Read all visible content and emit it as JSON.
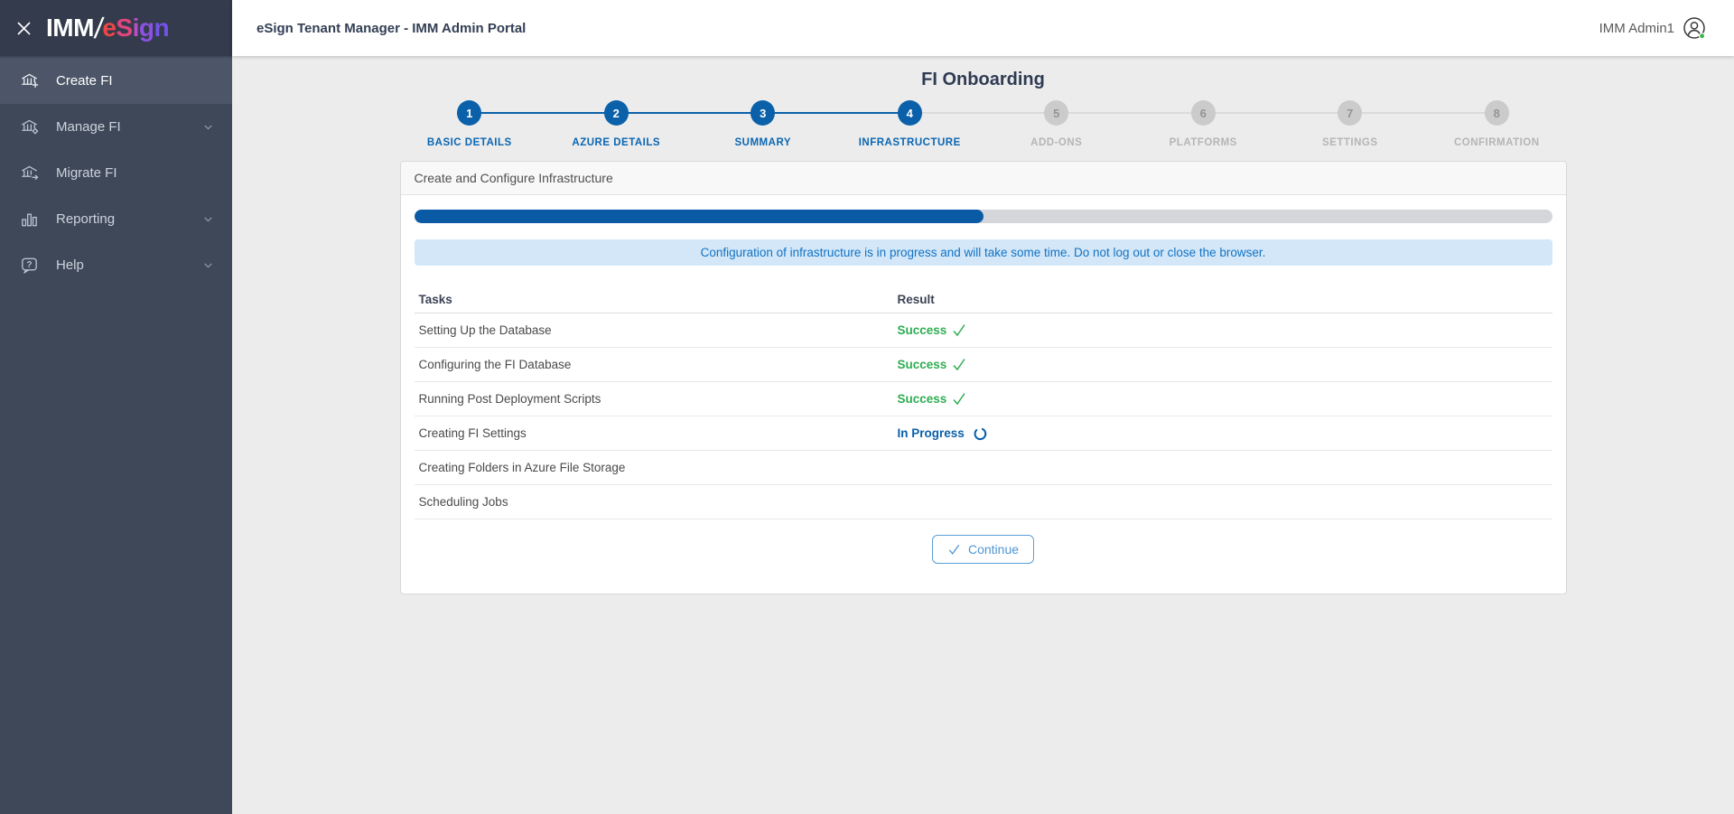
{
  "brand": {
    "logo_text_primary": "IMM",
    "logo_separator": "/",
    "logo_text_secondary": "eSign",
    "esign_letters": [
      "e",
      "S",
      "i",
      "g",
      "n"
    ]
  },
  "topbar": {
    "title": "eSign Tenant Manager - IMM Admin Portal",
    "user": {
      "name": "IMM Admin1",
      "status": "online"
    }
  },
  "sidebar": {
    "items": [
      {
        "label": "Create FI",
        "icon": "bank-plus-icon",
        "active": true,
        "expandable": false
      },
      {
        "label": "Manage FI",
        "icon": "bank-gear-icon",
        "active": false,
        "expandable": true
      },
      {
        "label": "Migrate FI",
        "icon": "bank-arrow-icon",
        "active": false,
        "expandable": false
      },
      {
        "label": "Reporting",
        "icon": "bar-chart-icon",
        "active": false,
        "expandable": true
      },
      {
        "label": "Help",
        "icon": "help-bubble-icon",
        "active": false,
        "expandable": true
      }
    ]
  },
  "page": {
    "title": "FI Onboarding"
  },
  "stepper": {
    "steps": [
      {
        "number": "1",
        "label": "BASIC DETAILS",
        "state": "completed"
      },
      {
        "number": "2",
        "label": "AZURE DETAILS",
        "state": "completed"
      },
      {
        "number": "3",
        "label": "SUMMARY",
        "state": "completed"
      },
      {
        "number": "4",
        "label": "INFRASTRUCTURE",
        "state": "current"
      },
      {
        "number": "5",
        "label": "ADD-ONS",
        "state": "upcoming"
      },
      {
        "number": "6",
        "label": "PLATFORMS",
        "state": "upcoming"
      },
      {
        "number": "7",
        "label": "SETTINGS",
        "state": "upcoming"
      },
      {
        "number": "8",
        "label": "CONFIRMATION",
        "state": "upcoming"
      }
    ]
  },
  "card": {
    "title": "Create and Configure Infrastructure",
    "progress_percent": 50,
    "notice": "Configuration of infrastructure is in progress and will take some time. Do not log out or close the browser.",
    "table": {
      "headers": {
        "tasks": "Tasks",
        "result": "Result"
      },
      "rows": [
        {
          "task": "Setting Up the Database",
          "result": "success",
          "result_label": "Success"
        },
        {
          "task": "Configuring the FI Database",
          "result": "success",
          "result_label": "Success"
        },
        {
          "task": "Running Post Deployment Scripts",
          "result": "success",
          "result_label": "Success"
        },
        {
          "task": "Creating FI Settings",
          "result": "in_progress",
          "result_label": "In Progress"
        },
        {
          "task": "Creating Folders in Azure File Storage",
          "result": "pending",
          "result_label": ""
        },
        {
          "task": "Scheduling Jobs",
          "result": "pending",
          "result_label": ""
        }
      ]
    },
    "continue_button": {
      "label": "Continue",
      "enabled": false
    }
  },
  "colors": {
    "primary_blue": "#0a61a9",
    "success_green": "#2fad52",
    "notice_bg": "#d3e7f8",
    "notice_text": "#1273c4",
    "continue_blue": "#4d96d2",
    "sidebar_bg": "#3f4859",
    "sidebar_logo_bg": "#333b4c",
    "sidebar_active_bg": "#4d5668",
    "page_bg": "#ececec",
    "step_inactive_grey": "#cbcbcb",
    "avatar_status_green": "#3bb54a",
    "esign_gradient": [
      "#ee4646",
      "#e0457e",
      "#b84ec4",
      "#8b52e0",
      "#7452e8"
    ]
  }
}
